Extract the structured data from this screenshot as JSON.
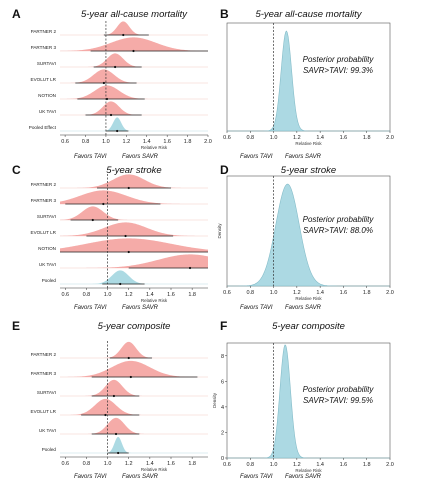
{
  "chart_data": [
    {
      "panel": "A",
      "type": "forest",
      "title": "5-year all-cause mortality",
      "xlabel": "Relative Risk",
      "xlim": [
        0.55,
        2.0
      ],
      "ticks": [
        0.6,
        0.8,
        1.0,
        1.2,
        1.4,
        1.6,
        1.8,
        2.0
      ],
      "favors_left": "Favors TAVI",
      "favors_right": "Favors SAVR",
      "studies": [
        {
          "name": "PARTNER 2",
          "est": 1.17,
          "lo": 0.98,
          "hi": 1.42,
          "sd": 0.06,
          "color": "#f4a7a3"
        },
        {
          "name": "PARTNER 3",
          "est": 1.27,
          "lo": 0.85,
          "hi": 2.0,
          "sd": 0.22,
          "color": "#f4a7a3"
        },
        {
          "name": "SURTAVI",
          "est": 1.09,
          "lo": 0.88,
          "hi": 1.35,
          "sd": 0.08,
          "color": "#f4a7a3"
        },
        {
          "name": "EVOLUT LR",
          "est": 0.98,
          "lo": 0.7,
          "hi": 1.3,
          "sd": 0.1,
          "color": "#f4a7a3"
        },
        {
          "name": "NOTION",
          "est": 1.01,
          "lo": 0.72,
          "hi": 1.38,
          "sd": 0.12,
          "color": "#f4a7a3"
        },
        {
          "name": "UK TAVI",
          "est": 1.05,
          "lo": 0.8,
          "hi": 1.35,
          "sd": 0.08,
          "color": "#f4a7a3"
        },
        {
          "name": "Pooled Effect",
          "est": 1.11,
          "lo": 1.0,
          "hi": 1.22,
          "sd": 0.04,
          "color": "#a8d8e2"
        }
      ]
    },
    {
      "panel": "B",
      "type": "density",
      "title": "5-year all-cause mortality",
      "xlabel": "Relative Risk",
      "xlim": [
        0.6,
        2.0
      ],
      "ticks": [
        0.6,
        0.8,
        1.0,
        1.2,
        1.4,
        1.6,
        1.8,
        2.0
      ],
      "ylabel": "",
      "mean": 1.11,
      "sd": 0.045,
      "color": "#a8d8e2",
      "favors_left": "Favors TAVI",
      "favors_right": "Favors SAVR",
      "annotation": [
        "Posterior probability",
        "SAVR>TAVI: 99.3%"
      ]
    },
    {
      "panel": "C",
      "type": "forest",
      "title": "5-year stroke",
      "xlabel": "Relative Risk",
      "xlim": [
        0.55,
        1.95
      ],
      "ticks": [
        0.6,
        0.8,
        1.0,
        1.2,
        1.4,
        1.6,
        1.8
      ],
      "favors_left": "Favors TAVI",
      "favors_right": "Favors SAVR",
      "studies": [
        {
          "name": "PARTNER 2",
          "est": 1.2,
          "lo": 0.9,
          "hi": 1.6,
          "sd": 0.15,
          "color": "#f4a7a3"
        },
        {
          "name": "PARTNER 3",
          "est": 0.96,
          "lo": 0.6,
          "hi": 1.5,
          "sd": 0.22,
          "color": "#f4a7a3"
        },
        {
          "name": "SURTAVI",
          "est": 0.86,
          "lo": 0.65,
          "hi": 1.1,
          "sd": 0.1,
          "color": "#f4a7a3"
        },
        {
          "name": "EVOLUT LR",
          "est": 1.17,
          "lo": 0.8,
          "hi": 1.62,
          "sd": 0.2,
          "color": "#f4a7a3"
        },
        {
          "name": "NOTION",
          "est": 1.2,
          "lo": 0.55,
          "hi": 1.95,
          "sd": 0.4,
          "color": "#f4a7a3"
        },
        {
          "name": "UK TAVI",
          "est": 1.78,
          "lo": 1.2,
          "hi": 1.95,
          "sd": 0.3,
          "color": "#f4a7a3"
        },
        {
          "name": "Pooled",
          "est": 1.12,
          "lo": 0.95,
          "hi": 1.35,
          "sd": 0.08,
          "color": "#a8d8e2"
        }
      ]
    },
    {
      "panel": "D",
      "type": "density",
      "title": "5-year stroke",
      "xlabel": "Relative Risk",
      "xlim": [
        0.6,
        2.0
      ],
      "ticks": [
        0.6,
        0.8,
        1.0,
        1.2,
        1.4,
        1.6,
        1.8,
        2.0
      ],
      "ylabel": "Density",
      "mean": 1.12,
      "sd": 0.1,
      "color": "#a8d8e2",
      "favors_left": "Favors TAVI",
      "favors_right": "Favors SAVR",
      "annotation": [
        "Posterior probability",
        "SAVR>TAVI: 88.0%"
      ]
    },
    {
      "panel": "E",
      "type": "forest",
      "title": "5-year composite",
      "xlabel": "Relative Risk",
      "xlim": [
        0.55,
        1.95
      ],
      "ticks": [
        0.6,
        0.8,
        1.0,
        1.2,
        1.4,
        1.6,
        1.8
      ],
      "favors_left": "Favors TAVI",
      "favors_right": "Favors SAVR",
      "studies": [
        {
          "name": "PARTNER 2",
          "est": 1.2,
          "lo": 1.02,
          "hi": 1.42,
          "sd": 0.07,
          "color": "#f4a7a3"
        },
        {
          "name": "PARTNER 3",
          "est": 1.22,
          "lo": 0.85,
          "hi": 1.85,
          "sd": 0.18,
          "color": "#f4a7a3"
        },
        {
          "name": "SURTAVI",
          "est": 1.06,
          "lo": 0.85,
          "hi": 1.3,
          "sd": 0.08,
          "color": "#f4a7a3"
        },
        {
          "name": "EVOLUT LR",
          "est": 0.98,
          "lo": 0.75,
          "hi": 1.3,
          "sd": 0.1,
          "color": "#f4a7a3"
        },
        {
          "name": "UK TAVI",
          "est": 1.08,
          "lo": 0.85,
          "hi": 1.3,
          "sd": 0.08,
          "color": "#f4a7a3"
        },
        {
          "name": "Pooled",
          "est": 1.1,
          "lo": 1.0,
          "hi": 1.2,
          "sd": 0.035,
          "color": "#a8d8e2"
        }
      ]
    },
    {
      "panel": "F",
      "type": "density",
      "title": "5-year composite",
      "xlabel": "Relative Risk",
      "xlim": [
        0.6,
        2.0
      ],
      "ticks": [
        0.6,
        0.8,
        1.0,
        1.2,
        1.4,
        1.6,
        1.8,
        2.0
      ],
      "ylabel": "Density",
      "yticks": [
        0,
        2,
        4,
        6,
        8
      ],
      "ylim": [
        0,
        9
      ],
      "mean": 1.1,
      "sd": 0.045,
      "color": "#a8d8e2",
      "favors_left": "Favors TAVI",
      "favors_right": "Favors SAVR",
      "annotation": [
        "Posterior probability",
        "SAVR>TAVI: 99.5%"
      ]
    }
  ]
}
